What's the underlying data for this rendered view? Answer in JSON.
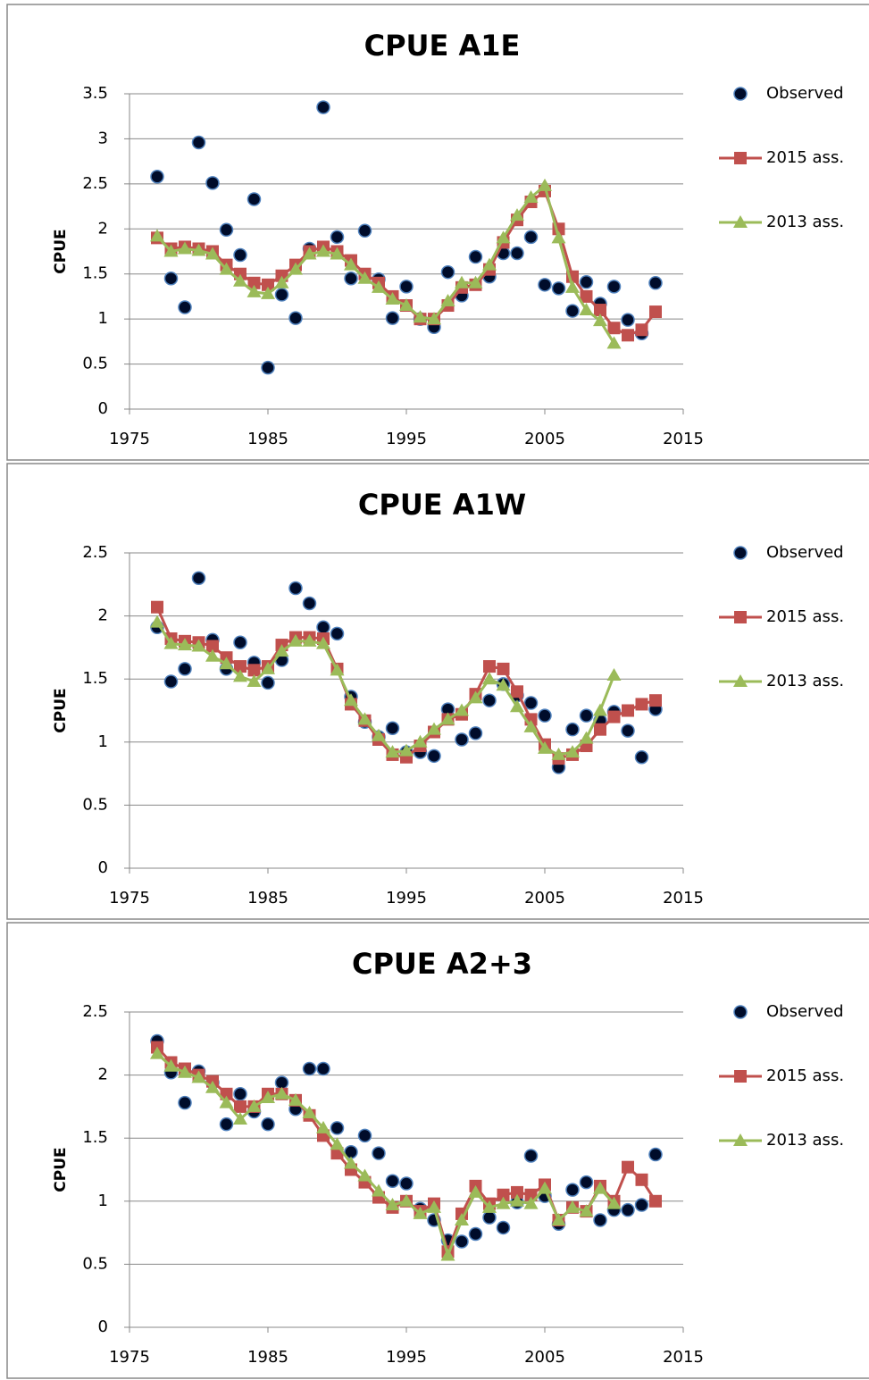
{
  "chart_data": [
    {
      "type": "line",
      "title": "CPUE A1E",
      "y_label": "CPUE",
      "x": [
        1977,
        1978,
        1979,
        1980,
        1981,
        1982,
        1983,
        1984,
        1985,
        1986,
        1987,
        1988,
        1989,
        1990,
        1991,
        1992,
        1993,
        1994,
        1995,
        1996,
        1997,
        1998,
        1999,
        2000,
        2001,
        2002,
        2003,
        2004,
        2005,
        2006,
        2007,
        2008,
        2009,
        2010,
        2011,
        2012,
        2013
      ],
      "series": [
        {
          "name": "Observed",
          "color": "#000c2a",
          "marker": "circle",
          "line": false,
          "values": [
            2.58,
            1.45,
            1.13,
            2.96,
            2.51,
            1.99,
            1.71,
            2.33,
            0.46,
            1.27,
            1.01,
            1.78,
            3.35,
            1.91,
            1.45,
            1.98,
            1.44,
            1.01,
            1.36,
            1.0,
            0.91,
            1.52,
            1.26,
            1.69,
            1.47,
            1.73,
            1.73,
            1.91,
            1.38,
            1.34,
            1.09,
            1.41,
            1.17,
            1.36,
            0.99,
            0.84,
            1.4
          ]
        },
        {
          "name": "2015 ass.",
          "color": "#c0504d",
          "marker": "square",
          "line": true,
          "values": [
            1.9,
            1.78,
            1.8,
            1.78,
            1.75,
            1.6,
            1.5,
            1.4,
            1.38,
            1.48,
            1.6,
            1.75,
            1.8,
            1.75,
            1.65,
            1.5,
            1.4,
            1.25,
            1.15,
            1.0,
            1.0,
            1.15,
            1.35,
            1.38,
            1.55,
            1.85,
            2.1,
            2.3,
            2.42,
            2.0,
            1.47,
            1.25,
            1.1,
            0.9,
            0.82,
            0.88,
            1.08
          ]
        },
        {
          "name": "2013 ass.",
          "color": "#9bbb59",
          "marker": "triangle",
          "line": true,
          "values": [
            1.92,
            1.75,
            1.78,
            1.76,
            1.72,
            1.55,
            1.42,
            1.3,
            1.28,
            1.4,
            1.55,
            1.72,
            1.75,
            1.72,
            1.6,
            1.45,
            1.35,
            1.22,
            1.15,
            1.02,
            1.0,
            1.2,
            1.4,
            1.4,
            1.6,
            1.9,
            2.15,
            2.35,
            2.48,
            1.9,
            1.35,
            1.1,
            0.98,
            0.73,
            null,
            null,
            null
          ]
        }
      ],
      "xlim": [
        1975,
        2015
      ],
      "xticks": [
        1975,
        1985,
        1995,
        2005,
        2015
      ],
      "ylim": [
        0,
        3.5
      ],
      "yticks": [
        0,
        0.5,
        1,
        1.5,
        2,
        2.5,
        3,
        3.5
      ],
      "grid": true,
      "legend": "right"
    },
    {
      "type": "line",
      "title": "CPUE A1W",
      "y_label": "CPUE",
      "x": [
        1977,
        1978,
        1979,
        1980,
        1981,
        1982,
        1983,
        1984,
        1985,
        1986,
        1987,
        1988,
        1989,
        1990,
        1991,
        1992,
        1993,
        1994,
        1995,
        1996,
        1997,
        1998,
        1999,
        2000,
        2001,
        2002,
        2003,
        2004,
        2005,
        2006,
        2007,
        2008,
        2009,
        2010,
        2011,
        2012,
        2013
      ],
      "series": [
        {
          "name": "Observed",
          "color": "#000c2a",
          "marker": "circle",
          "line": false,
          "values": [
            1.91,
            1.48,
            1.58,
            2.3,
            1.81,
            1.58,
            1.79,
            1.63,
            1.47,
            1.65,
            2.22,
            2.1,
            1.91,
            1.86,
            1.36,
            1.16,
            1.04,
            1.11,
            0.92,
            0.92,
            0.89,
            1.26,
            1.02,
            1.07,
            1.33,
            1.46,
            1.37,
            1.31,
            1.21,
            0.8,
            1.1,
            1.21,
            1.17,
            1.24,
            1.09,
            0.88,
            1.26
          ]
        },
        {
          "name": "2015 ass.",
          "color": "#c0504d",
          "marker": "square",
          "line": true,
          "values": [
            2.07,
            1.82,
            1.8,
            1.79,
            1.76,
            1.67,
            1.6,
            1.57,
            1.6,
            1.77,
            1.83,
            1.83,
            1.82,
            1.58,
            1.3,
            1.17,
            1.02,
            0.9,
            0.88,
            0.97,
            1.08,
            1.18,
            1.22,
            1.38,
            1.6,
            1.58,
            1.4,
            1.18,
            0.98,
            0.87,
            0.9,
            0.97,
            1.1,
            1.2,
            1.25,
            1.3,
            1.33
          ]
        },
        {
          "name": "2013 ass.",
          "color": "#9bbb59",
          "marker": "triangle",
          "line": true,
          "values": [
            1.95,
            1.78,
            1.77,
            1.76,
            1.68,
            1.62,
            1.52,
            1.48,
            1.58,
            1.72,
            1.8,
            1.8,
            1.78,
            1.57,
            1.33,
            1.18,
            1.05,
            0.92,
            0.93,
            1.0,
            1.1,
            1.18,
            1.25,
            1.35,
            1.5,
            1.45,
            1.28,
            1.12,
            0.95,
            0.9,
            0.92,
            1.03,
            1.25,
            1.53,
            null,
            null,
            null
          ]
        }
      ],
      "xlim": [
        1975,
        2015
      ],
      "xticks": [
        1975,
        1985,
        1995,
        2005,
        2015
      ],
      "ylim": [
        0,
        2.5
      ],
      "yticks": [
        0,
        0.5,
        1,
        1.5,
        2,
        2.5
      ],
      "grid": true,
      "legend": "right"
    },
    {
      "type": "line",
      "title": "CPUE A2+3",
      "y_label": "CPUE",
      "x": [
        1977,
        1978,
        1979,
        1980,
        1981,
        1982,
        1983,
        1984,
        1985,
        1986,
        1987,
        1988,
        1989,
        1990,
        1991,
        1992,
        1993,
        1994,
        1995,
        1996,
        1997,
        1998,
        1999,
        2000,
        2001,
        2002,
        2003,
        2004,
        2005,
        2006,
        2007,
        2008,
        2009,
        2010,
        2011,
        2012,
        2013
      ],
      "series": [
        {
          "name": "Observed",
          "color": "#000c2a",
          "marker": "circle",
          "line": false,
          "values": [
            2.27,
            2.02,
            1.78,
            2.03,
            1.94,
            1.61,
            1.85,
            1.71,
            1.61,
            1.94,
            1.73,
            2.05,
            2.05,
            1.58,
            1.39,
            1.52,
            1.38,
            1.16,
            1.14,
            0.94,
            0.85,
            0.69,
            0.68,
            0.74,
            0.87,
            0.79,
            0.99,
            1.36,
            1.04,
            0.82,
            1.09,
            1.15,
            0.85,
            0.93,
            0.93,
            0.97,
            1.37
          ]
        },
        {
          "name": "2015 ass.",
          "color": "#c0504d",
          "marker": "square",
          "line": true,
          "values": [
            2.22,
            2.1,
            2.05,
            2.0,
            1.95,
            1.85,
            1.75,
            1.75,
            1.85,
            1.85,
            1.8,
            1.68,
            1.52,
            1.38,
            1.25,
            1.15,
            1.03,
            0.95,
            1.0,
            0.92,
            0.98,
            0.6,
            0.9,
            1.12,
            0.98,
            1.05,
            1.07,
            1.05,
            1.13,
            0.85,
            0.95,
            0.92,
            1.12,
            1.0,
            1.27,
            1.17,
            1.0
          ]
        },
        {
          "name": "2013 ass.",
          "color": "#9bbb59",
          "marker": "triangle",
          "line": true,
          "values": [
            2.17,
            2.07,
            2.02,
            1.98,
            1.9,
            1.78,
            1.65,
            1.75,
            1.82,
            1.85,
            1.8,
            1.7,
            1.58,
            1.45,
            1.3,
            1.2,
            1.08,
            0.97,
            1.0,
            0.9,
            0.95,
            0.57,
            0.85,
            1.07,
            0.95,
            0.98,
            1.0,
            0.98,
            1.1,
            0.85,
            0.95,
            0.92,
            1.1,
            0.98,
            null,
            null,
            null
          ]
        }
      ],
      "xlim": [
        1975,
        2015
      ],
      "xticks": [
        1975,
        1985,
        1995,
        2005,
        2015
      ],
      "ylim": [
        0,
        2.5
      ],
      "yticks": [
        0,
        0.5,
        1,
        1.5,
        2,
        2.5
      ],
      "grid": true,
      "legend": "right"
    }
  ]
}
